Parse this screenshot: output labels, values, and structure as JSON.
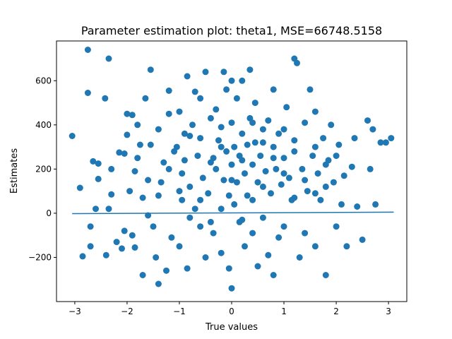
{
  "chart_data": {
    "type": "scatter",
    "title": "Parameter estimation plot: theta1, MSE=66748.5158",
    "xlabel": "True values",
    "ylabel": "Estimates",
    "xlim": [
      -3.35,
      3.35
    ],
    "ylim": [
      -400,
      780
    ],
    "xticks": [
      -3,
      -2,
      -1,
      0,
      1,
      2,
      3
    ],
    "xtick_labels": [
      "−3",
      "−2",
      "−1",
      "0",
      "1",
      "2",
      "3"
    ],
    "yticks": [
      -200,
      0,
      200,
      400,
      600
    ],
    "ytick_labels": [
      "−200",
      "0",
      "200",
      "400",
      "600"
    ],
    "grid": false,
    "color": "#1f77b4",
    "series": [
      {
        "kind": "scatter",
        "points": [
          [
            -3.05,
            350
          ],
          [
            -2.9,
            115
          ],
          [
            -2.85,
            -195
          ],
          [
            -2.75,
            740
          ],
          [
            -2.75,
            545
          ],
          [
            -2.7,
            -60
          ],
          [
            -2.7,
            -150
          ],
          [
            -2.65,
            235
          ],
          [
            -2.6,
            20
          ],
          [
            -2.55,
            155
          ],
          [
            -2.55,
            225
          ],
          [
            -2.42,
            520
          ],
          [
            -2.4,
            -190
          ],
          [
            -2.35,
            700
          ],
          [
            -2.35,
            20
          ],
          [
            -2.3,
            200
          ],
          [
            -2.3,
            85
          ],
          [
            -2.2,
            -130
          ],
          [
            -2.15,
            275
          ],
          [
            -2.1,
            -160
          ],
          [
            -2.05,
            -80
          ],
          [
            -2.05,
            270
          ],
          [
            -2.0,
            450
          ],
          [
            -2.0,
            355
          ],
          [
            -1.95,
            100
          ],
          [
            -1.9,
            -100
          ],
          [
            -1.9,
            445
          ],
          [
            -1.85,
            190
          ],
          [
            -1.85,
            -155
          ],
          [
            -1.8,
            400
          ],
          [
            -1.75,
            310
          ],
          [
            -1.7,
            -280
          ],
          [
            -1.7,
            70
          ],
          [
            -1.65,
            520
          ],
          [
            -1.6,
            -10
          ],
          [
            -1.55,
            310
          ],
          [
            -1.55,
            650
          ],
          [
            -1.5,
            -60
          ],
          [
            -1.45,
            -200
          ],
          [
            -1.4,
            380
          ],
          [
            -1.4,
            -320
          ],
          [
            -1.35,
            140
          ],
          [
            -1.3,
            230
          ],
          [
            -1.25,
            -260
          ],
          [
            -1.2,
            555
          ],
          [
            -1.2,
            450
          ],
          [
            -1.15,
            -110
          ],
          [
            -1.1,
            280
          ],
          [
            -1.05,
            300
          ],
          [
            -1.0,
            460
          ],
          [
            -1.0,
            -150
          ],
          [
            -0.95,
            180
          ],
          [
            -0.95,
            60
          ],
          [
            -0.9,
            360
          ],
          [
            -0.85,
            620
          ],
          [
            -0.85,
            -250
          ],
          [
            -0.8,
            120
          ],
          [
            -0.75,
            400
          ],
          [
            -0.7,
            20
          ],
          [
            -0.7,
            550
          ],
          [
            -0.65,
            260
          ],
          [
            -0.6,
            -60
          ],
          [
            -0.6,
            340
          ],
          [
            -0.55,
            160
          ],
          [
            -0.5,
            640
          ],
          [
            -0.5,
            -200
          ],
          [
            -0.45,
            90
          ],
          [
            -0.4,
            430
          ],
          [
            -0.35,
            250
          ],
          [
            -0.35,
            -90
          ],
          [
            -0.3,
            200
          ],
          [
            -0.3,
            470
          ],
          [
            -0.25,
            330
          ],
          [
            -0.2,
            20
          ],
          [
            -0.2,
            -180
          ],
          [
            -0.15,
            640
          ],
          [
            -0.15,
            150
          ],
          [
            -0.1,
            280
          ],
          [
            -0.1,
            560
          ],
          [
            -0.05,
            80
          ],
          [
            -0.05,
            -250
          ],
          [
            0.0,
            220
          ],
          [
            0.0,
            -340
          ],
          [
            0.0,
            410
          ],
          [
            0.05,
            40
          ],
          [
            0.05,
            300
          ],
          [
            0.1,
            140
          ],
          [
            0.1,
            520
          ],
          [
            0.15,
            -40
          ],
          [
            0.15,
            260
          ],
          [
            0.2,
            360
          ],
          [
            0.2,
            600
          ],
          [
            0.25,
            180
          ],
          [
            0.25,
            -150
          ],
          [
            0.3,
            80
          ],
          [
            0.3,
            310
          ],
          [
            0.35,
            430
          ],
          [
            0.35,
            650
          ],
          [
            0.4,
            220
          ],
          [
            0.4,
            -90
          ],
          [
            0.45,
            320
          ],
          [
            0.45,
            500
          ],
          [
            0.5,
            140
          ],
          [
            0.5,
            -240
          ],
          [
            0.55,
            260
          ],
          [
            0.6,
            380
          ],
          [
            0.6,
            -20
          ],
          [
            0.65,
            190
          ],
          [
            0.7,
            420
          ],
          [
            0.7,
            -190
          ],
          [
            0.75,
            90
          ],
          [
            0.8,
            300
          ],
          [
            0.8,
            560
          ],
          [
            0.85,
            200
          ],
          [
            0.9,
            -110
          ],
          [
            0.9,
            360
          ],
          [
            0.95,
            130
          ],
          [
            1.0,
            250
          ],
          [
            1.0,
            -60
          ],
          [
            1.05,
            480
          ],
          [
            1.1,
            160
          ],
          [
            1.15,
            60
          ],
          [
            1.2,
            330
          ],
          [
            1.2,
            700
          ],
          [
            1.25,
            680
          ],
          [
            1.3,
            -200
          ],
          [
            1.35,
            200
          ],
          [
            1.4,
            410
          ],
          [
            1.45,
            100
          ],
          [
            1.5,
            560
          ],
          [
            1.55,
            260
          ],
          [
            1.6,
            -150
          ],
          [
            1.6,
            460
          ],
          [
            1.65,
            180
          ],
          [
            1.7,
            60
          ],
          [
            1.75,
            340
          ],
          [
            1.8,
            -280
          ],
          [
            1.85,
            240
          ],
          [
            1.9,
            400
          ],
          [
            1.95,
            140
          ],
          [
            2.0,
            -60
          ],
          [
            2.05,
            310
          ],
          [
            2.1,
            40
          ],
          [
            2.15,
            170
          ],
          [
            2.2,
            -150
          ],
          [
            2.3,
            210
          ],
          [
            2.35,
            340
          ],
          [
            2.4,
            30
          ],
          [
            2.5,
            -120
          ],
          [
            2.6,
            420
          ],
          [
            2.65,
            200
          ],
          [
            2.7,
            380
          ],
          [
            2.75,
            40
          ],
          [
            2.85,
            320
          ],
          [
            2.95,
            320
          ],
          [
            3.05,
            340
          ],
          [
            -0.9,
            240
          ],
          [
            -0.8,
            -20
          ],
          [
            -0.6,
            520
          ],
          [
            -0.4,
            -40
          ],
          [
            -0.2,
            390
          ],
          [
            0.0,
            600
          ],
          [
            0.2,
            -30
          ],
          [
            0.4,
            410
          ],
          [
            0.6,
            120
          ],
          [
            0.8,
            -280
          ],
          [
            1.0,
            380
          ],
          [
            1.2,
            70
          ],
          [
            1.4,
            -90
          ],
          [
            1.6,
            300
          ],
          [
            1.8,
            120
          ],
          [
            -1.8,
            250
          ],
          [
            -1.6,
            150
          ],
          [
            -1.4,
            80
          ],
          [
            -1.2,
            200
          ],
          [
            -1.0,
            100
          ],
          [
            -0.8,
            350
          ],
          [
            -0.6,
            60
          ],
          [
            -0.4,
            230
          ],
          [
            -0.2,
            300
          ],
          [
            0.0,
            150
          ],
          [
            0.2,
            240
          ],
          [
            0.4,
            60
          ],
          [
            0.6,
            320
          ],
          [
            0.8,
            250
          ],
          [
            1.0,
            180
          ],
          [
            1.2,
            280
          ],
          [
            1.4,
            150
          ],
          [
            1.6,
            90
          ],
          [
            1.8,
            220
          ],
          [
            2.0,
            260
          ]
        ]
      },
      {
        "kind": "line",
        "points": [
          [
            -3.05,
            -2
          ],
          [
            3.1,
            5
          ]
        ]
      }
    ]
  }
}
